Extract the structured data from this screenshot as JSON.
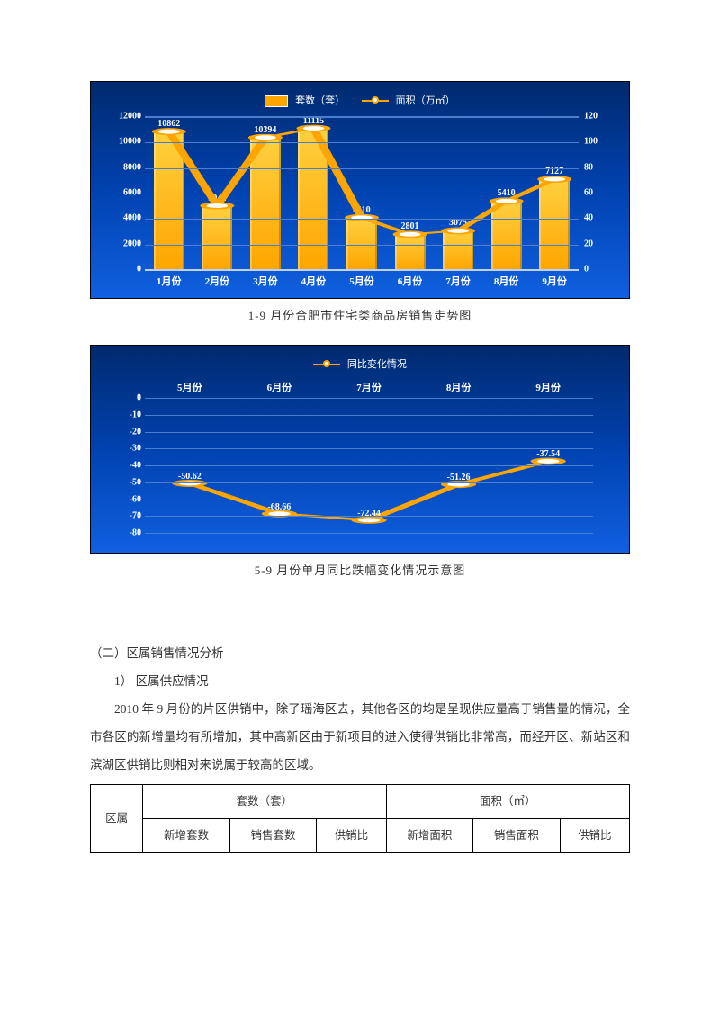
{
  "chart1": {
    "type": "bar-line",
    "legend": {
      "bar": "套数（套）",
      "line": "面积（万㎡）"
    },
    "categories": [
      "1月份",
      "2月份",
      "3月份",
      "4月份",
      "5月份",
      "6月份",
      "7月份",
      "8月份",
      "9月份"
    ],
    "bar_values": [
      10862,
      5042,
      10394,
      11115,
      4110,
      2801,
      3075,
      5410,
      7127
    ],
    "left_ylim": [
      0,
      12000
    ],
    "left_step": 2000,
    "right_ylim": [
      0,
      120
    ],
    "right_step": 20,
    "bar_color_top": "#ffd040",
    "bar_color_bottom": "#ffa500",
    "line_color": "#ffa500",
    "marker_fill": "#ffffff",
    "bg_gradient": [
      "#002a6e",
      "#0042b0",
      "#1060e0"
    ],
    "grid_color": "#4a7fd0",
    "text_color": "#ffffff"
  },
  "caption1": "1-9 月份合肥市住宅类商品房销售走势图",
  "chart2": {
    "type": "line",
    "legend": {
      "line": "同比变化情况"
    },
    "categories": [
      "5月份",
      "6月份",
      "7月份",
      "8月份",
      "9月份"
    ],
    "values": [
      -50.62,
      -68.66,
      -72.44,
      -51.26,
      -37.54
    ],
    "ylim": [
      -80,
      0
    ],
    "step": 10,
    "line_color": "#ffa500",
    "marker_fill": "#ffffff",
    "bg_gradient": [
      "#002a6e",
      "#0042b0",
      "#1060e0"
    ],
    "grid_color": "#4a7fd0",
    "text_color": "#ffffff"
  },
  "caption2": "5-9 月份单月同比跌幅变化情况示意图",
  "section": {
    "heading": "（二）区属销售情况分析",
    "sub1": "1）  区属供应情况",
    "body": "2010 年 9 月份的片区供销中，除了瑶海区去，其他各区的均是呈现供应量高于销售量的情况，全市各区的新增量均有所增加，其中高新区由于新项目的进入使得供销比非常高，而经开区、新站区和滨湖区供销比则相对来说属于较高的区域。"
  },
  "table": {
    "row1c1": "区属",
    "row1c2": "套数（套）",
    "row1c3": "面积（㎡）",
    "h1": "新增套数",
    "h2": "销售套数",
    "h3": "供销比",
    "h4": "新增面积",
    "h5": "销售面积",
    "h6": "供销比"
  }
}
